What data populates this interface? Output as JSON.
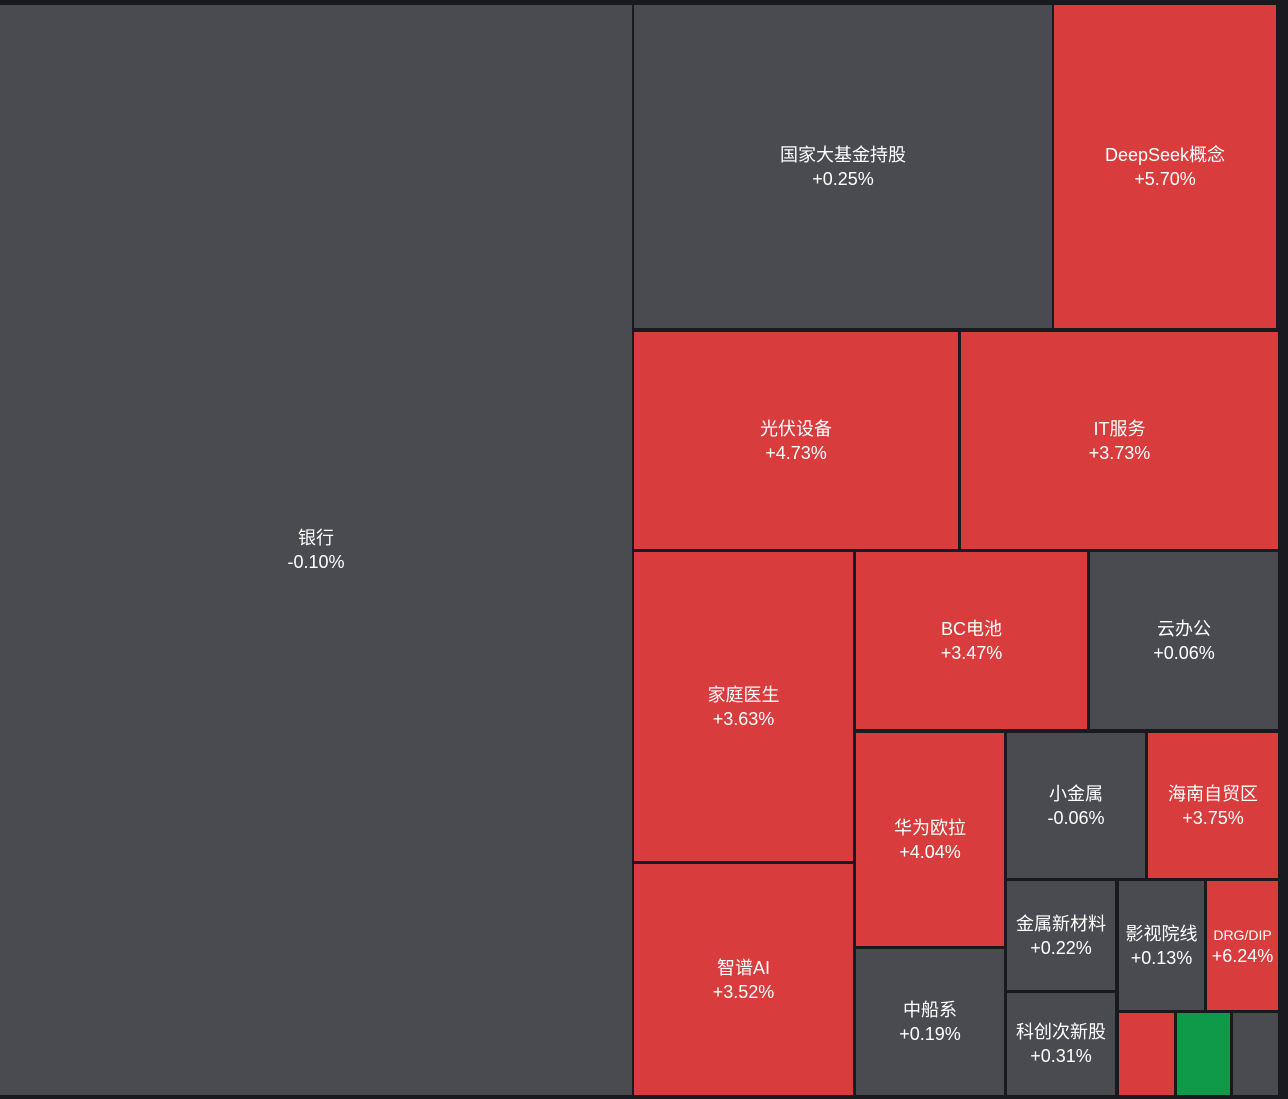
{
  "colors": {
    "up": "#d83c3c",
    "flat": "#4a4b51",
    "down": "#0f9a49",
    "background": "#191a1f"
  },
  "chart_data": {
    "type": "treemap",
    "items": [
      {
        "name": "银行",
        "change": "-0.10%",
        "color": "flat"
      },
      {
        "name": "国家大基金持股",
        "change": "+0.25%",
        "color": "flat"
      },
      {
        "name": "DeepSeek概念",
        "change": "+5.70%",
        "color": "up"
      },
      {
        "name": "光伏设备",
        "change": "+4.73%",
        "color": "up"
      },
      {
        "name": "IT服务",
        "change": "+3.73%",
        "color": "up"
      },
      {
        "name": "家庭医生",
        "change": "+3.63%",
        "color": "up"
      },
      {
        "name": "BC电池",
        "change": "+3.47%",
        "color": "up"
      },
      {
        "name": "云办公",
        "change": "+0.06%",
        "color": "flat"
      },
      {
        "name": "华为欧拉",
        "change": "+4.04%",
        "color": "up"
      },
      {
        "name": "小金属",
        "change": "-0.06%",
        "color": "flat"
      },
      {
        "name": "海南自贸区",
        "change": "+3.75%",
        "color": "up"
      },
      {
        "name": "智谱AI",
        "change": "+3.52%",
        "color": "up"
      },
      {
        "name": "中船系",
        "change": "+0.19%",
        "color": "flat"
      },
      {
        "name": "金属新材料",
        "change": "+0.22%",
        "color": "flat"
      },
      {
        "name": "影视院线",
        "change": "+0.13%",
        "color": "flat"
      },
      {
        "name": "DRG/DIP",
        "change": "+6.24%",
        "color": "up"
      },
      {
        "name": "科创次新股",
        "change": "+0.31%",
        "color": "flat"
      },
      {
        "name": "",
        "change": "",
        "color": "up"
      },
      {
        "name": "",
        "change": "",
        "color": "down"
      },
      {
        "name": "",
        "change": "",
        "color": "flat"
      }
    ]
  }
}
